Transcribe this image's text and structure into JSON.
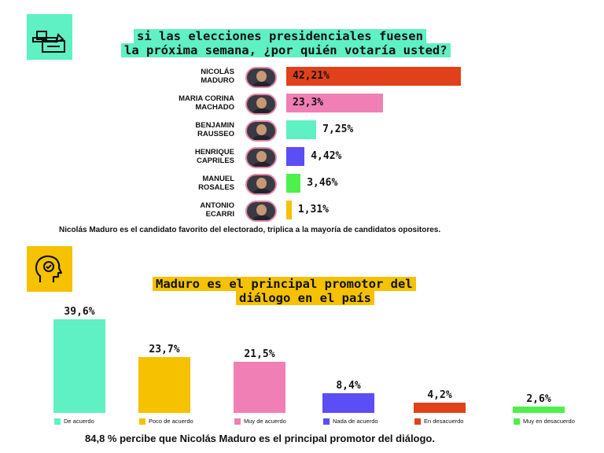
{
  "section1": {
    "icon": "ballot-box-icon",
    "icon_bg": "#5ff0c3",
    "title_line1": "si las elecciones presidenciales fuesen",
    "title_line2": "la próxima semana, ¿por quién votaría usted?",
    "note": "Nicolás Maduro es el candidato favorito del electorado, triplica a la mayoría de candidatos opositores."
  },
  "section2": {
    "icon": "head-checkmark-icon",
    "icon_bg": "#f5c100",
    "title_line1": "Maduro es el principal promotor del",
    "title_line2": "diálogo en el país",
    "note": "84,8 % percibe que Nicolás Maduro es el principal promotor del diálogo."
  },
  "chart_data": [
    {
      "type": "bar",
      "orientation": "horizontal",
      "title": "si las elecciones presidenciales fuesen la próxima semana, ¿por quién votaría usted?",
      "categories": [
        {
          "line1": "NICOLÁS",
          "line2": "MADURO"
        },
        {
          "line1": "MARIA CORINA",
          "line2": "MACHADO"
        },
        {
          "line1": "BENJAMIN",
          "line2": "RAUSSEO"
        },
        {
          "line1": "HENRIQUE",
          "line2": "CAPRILES"
        },
        {
          "line1": "MANUEL",
          "line2": "ROSALES"
        },
        {
          "line1": "ANTONIO",
          "line2": "ECARRI"
        }
      ],
      "values": [
        42.21,
        23.3,
        7.25,
        4.42,
        3.46,
        1.31
      ],
      "labels": [
        "42,21%",
        "23,3%",
        "7,25%",
        "4,42%",
        "3,46%",
        "1,31%"
      ],
      "colors": [
        "#e0411b",
        "#f07fb5",
        "#5ff0c3",
        "#5b4ef5",
        "#4ef04b",
        "#f5c100"
      ],
      "xlim": [
        0,
        42.21
      ]
    },
    {
      "type": "bar",
      "orientation": "vertical",
      "title": "Maduro es el principal promotor del diálogo en el país",
      "categories": [
        "De acuerdo",
        "Poco de acuerdo",
        "Muy de acuerdo",
        "Nada de acuerdo",
        "En desacuerdo",
        "Muy en desacuerdo"
      ],
      "values": [
        39.6,
        23.7,
        21.5,
        8.4,
        4.2,
        2.6
      ],
      "labels": [
        "39,6%",
        "23,7%",
        "21,5%",
        "8,4%",
        "4,2%",
        "2,6%"
      ],
      "colors": [
        "#5ff0c3",
        "#f5c100",
        "#f07fb5",
        "#5b4ef5",
        "#e0411b",
        "#4ef04b"
      ],
      "ylim": [
        0,
        39.6
      ],
      "legend": "bottom"
    }
  ]
}
